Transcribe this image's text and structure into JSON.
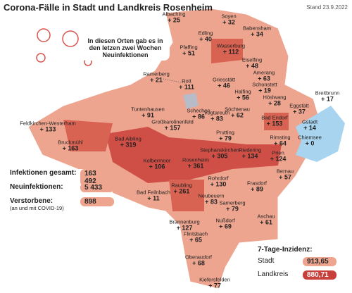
{
  "header": {
    "title": "Corona-Fälle in Stadt und Landkreis Rosenheim",
    "date": "Stand 23.9.2022",
    "note": "In diesen Orten gab es in den letzen zwei Wochen Neuinfektionen"
  },
  "places": [
    {
      "name": "Albaching",
      "value": "+ 25"
    },
    {
      "name": "Soyen",
      "value": "+ 32"
    },
    {
      "name": "Babensham",
      "value": "+ 34"
    },
    {
      "name": "Edling",
      "value": "+ 40"
    },
    {
      "name": "Pfaffing",
      "value": "+ 51"
    },
    {
      "name": "Wasserburg",
      "value": "+ 112"
    },
    {
      "name": "Eiselfing",
      "value": "+ 48"
    },
    {
      "name": "Amerang",
      "value": "+ 63"
    },
    {
      "name": "Griesstätt",
      "value": "+ 46"
    },
    {
      "name": "Schonstett",
      "value": "+ 19"
    },
    {
      "name": "Ramerberg",
      "value": "+ 21"
    },
    {
      "name": "Rott",
      "value": "+ 111"
    },
    {
      "name": "Halfing",
      "value": "+ 56"
    },
    {
      "name": "Höslwang",
      "value": "+ 28"
    },
    {
      "name": "Breitbrunn",
      "value": "+ 17"
    },
    {
      "name": "Eggstätt",
      "value": "+ 37"
    },
    {
      "name": "Gstadt",
      "value": "+ 14"
    },
    {
      "name": "Chiemsee",
      "value": "+ 0"
    },
    {
      "name": "Tuntenhausen",
      "value": "+ 91"
    },
    {
      "name": "Schechen",
      "value": "+ 86"
    },
    {
      "name": "Vogtareuth",
      "value": "+ 83"
    },
    {
      "name": "Söchtenau",
      "value": "+ 62"
    },
    {
      "name": "Bad Endorf",
      "value": "+ 153"
    },
    {
      "name": "Feldkirchen-Westerham",
      "value": "+ 133"
    },
    {
      "name": "Großkarolinenfeld",
      "value": "+ 157"
    },
    {
      "name": "Prutting",
      "value": "+ 79"
    },
    {
      "name": "Rimsting",
      "value": "+ 64"
    },
    {
      "name": "Bruckmühl",
      "value": "+ 163"
    },
    {
      "name": "Bad Aibling",
      "value": "+ 319"
    },
    {
      "name": "Stephanskirchen",
      "value": "+ 305"
    },
    {
      "name": "Riedering",
      "value": "+ 134"
    },
    {
      "name": "Prien",
      "value": "+ 124"
    },
    {
      "name": "Kolbermoor",
      "value": "+ 106"
    },
    {
      "name": "Rosenheim",
      "value": "+ 361"
    },
    {
      "name": "Bernau",
      "value": "+ 57"
    },
    {
      "name": "Bad Feilnbach",
      "value": "+ 11"
    },
    {
      "name": "Raubling",
      "value": "+ 261"
    },
    {
      "name": "Rohrdorf",
      "value": "+ 130"
    },
    {
      "name": "Neubeuern",
      "value": "+ 83"
    },
    {
      "name": "Frasdorf",
      "value": "+ 89"
    },
    {
      "name": "Samerberg",
      "value": "+ 79"
    },
    {
      "name": "Aschau",
      "value": "+ 61"
    },
    {
      "name": "Brannenburg",
      "value": "+ 127"
    },
    {
      "name": "Nußdorf",
      "value": "+ 69"
    },
    {
      "name": "Flintsbach",
      "value": "+ 65"
    },
    {
      "name": "Oberaudorf",
      "value": "+ 68"
    },
    {
      "name": "Kiefersfelden",
      "value": "+ 77"
    }
  ],
  "totals": [
    {
      "label": "Infektionen gesamt:",
      "value": "163 492"
    },
    {
      "label": "Neuinfektionen:",
      "value": "5 433"
    },
    {
      "label": "Verstorbene:",
      "sublabel": "(an und mit COVID-19)",
      "value": "898"
    }
  ],
  "incidence": {
    "title": "7-Tage-Inzidenz:",
    "rows": [
      {
        "label": "Stadt",
        "value": "913,65"
      },
      {
        "label": "Landkreis",
        "value": "880,71"
      }
    ]
  }
}
